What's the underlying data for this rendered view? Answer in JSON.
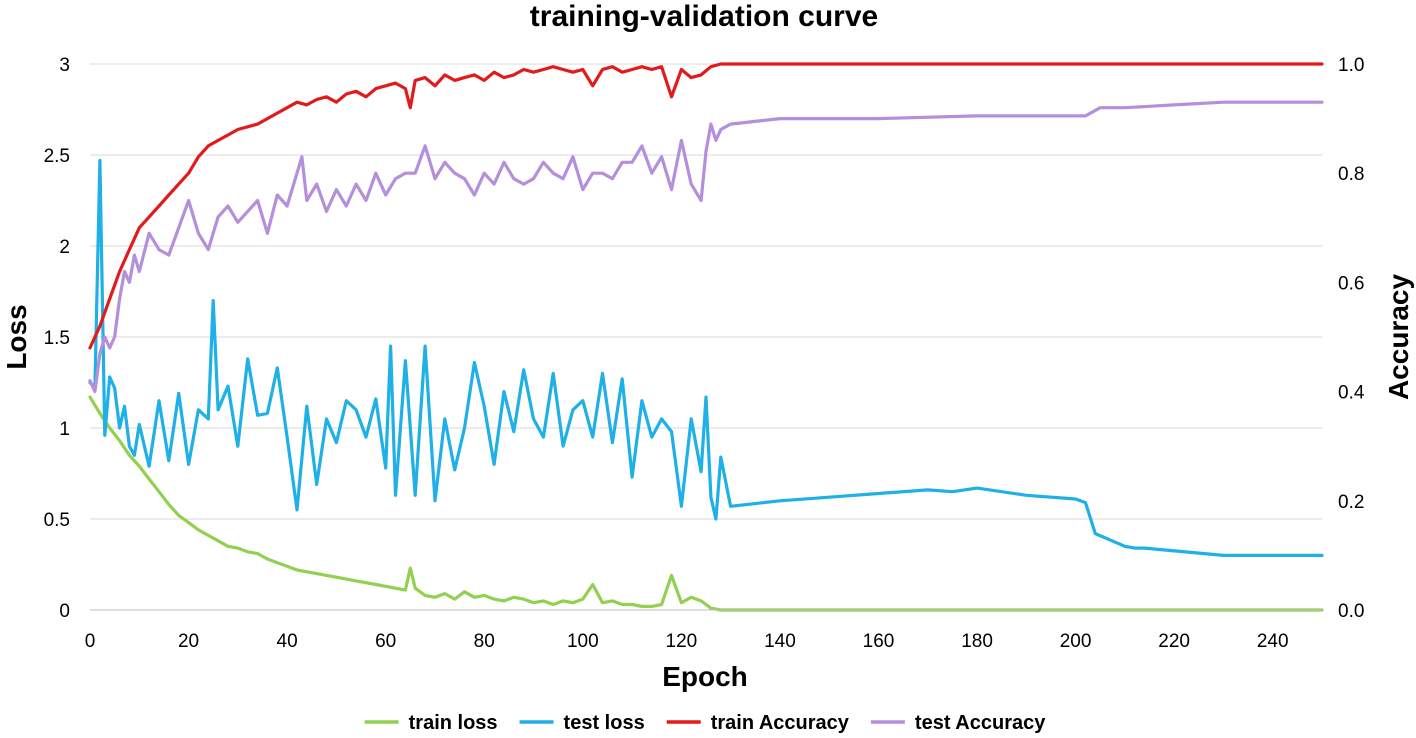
{
  "chart_data": {
    "type": "line",
    "title": "training-validation curve",
    "xlabel": "Epoch",
    "ylabel": "Loss",
    "y2label": "Accuracy",
    "xlim": [
      0,
      250
    ],
    "ylim": [
      0,
      3
    ],
    "y2lim": [
      0,
      1
    ],
    "xticks": [
      0,
      20,
      40,
      60,
      80,
      100,
      120,
      140,
      160,
      180,
      200,
      220,
      240
    ],
    "yticks": [
      "0",
      "0.5",
      "1",
      "1.5",
      "2",
      "2.5",
      "3"
    ],
    "y2ticks": [
      "0.0",
      "0.2",
      "0.4",
      "0.6",
      "0.8",
      "1.0"
    ],
    "grid": true,
    "legend_position": "bottom",
    "series": [
      {
        "name": "train loss",
        "axis": "left",
        "color": "#92d050",
        "x": [
          0,
          2,
          4,
          6,
          8,
          10,
          12,
          14,
          16,
          18,
          20,
          22,
          24,
          26,
          28,
          30,
          32,
          34,
          36,
          38,
          40,
          42,
          44,
          46,
          48,
          50,
          52,
          54,
          56,
          58,
          60,
          62,
          64,
          65,
          66,
          68,
          70,
          72,
          74,
          76,
          78,
          80,
          82,
          84,
          86,
          88,
          90,
          92,
          94,
          96,
          98,
          100,
          102,
          104,
          106,
          108,
          110,
          112,
          114,
          116,
          118,
          120,
          122,
          124,
          126,
          128,
          130,
          140,
          160,
          180,
          200,
          220,
          240,
          250
        ],
        "values": [
          1.17,
          1.08,
          1.0,
          0.93,
          0.85,
          0.79,
          0.72,
          0.65,
          0.58,
          0.52,
          0.48,
          0.44,
          0.41,
          0.38,
          0.35,
          0.34,
          0.32,
          0.31,
          0.28,
          0.26,
          0.24,
          0.22,
          0.21,
          0.2,
          0.19,
          0.18,
          0.17,
          0.16,
          0.15,
          0.14,
          0.13,
          0.12,
          0.11,
          0.23,
          0.12,
          0.08,
          0.07,
          0.09,
          0.06,
          0.1,
          0.07,
          0.08,
          0.06,
          0.05,
          0.07,
          0.06,
          0.04,
          0.05,
          0.03,
          0.05,
          0.04,
          0.06,
          0.14,
          0.04,
          0.05,
          0.03,
          0.03,
          0.02,
          0.02,
          0.03,
          0.19,
          0.04,
          0.07,
          0.05,
          0.01,
          0.0,
          0.0,
          0.0,
          0.0,
          0.0,
          0.0,
          0.0,
          0.0,
          0.0
        ]
      },
      {
        "name": "test loss",
        "axis": "left",
        "color": "#1eb0e6",
        "x": [
          0,
          1,
          2,
          3,
          4,
          5,
          6,
          7,
          8,
          9,
          10,
          12,
          14,
          16,
          18,
          20,
          22,
          24,
          25,
          26,
          28,
          30,
          32,
          34,
          36,
          38,
          40,
          42,
          44,
          46,
          48,
          50,
          52,
          54,
          56,
          58,
          60,
          61,
          62,
          64,
          66,
          68,
          70,
          72,
          74,
          76,
          78,
          80,
          82,
          84,
          86,
          88,
          90,
          92,
          94,
          96,
          98,
          100,
          102,
          104,
          106,
          108,
          110,
          112,
          114,
          116,
          118,
          120,
          122,
          124,
          125,
          126,
          127,
          128,
          130,
          140,
          150,
          160,
          170,
          175,
          180,
          190,
          200,
          202,
          204,
          210,
          212,
          214,
          230,
          250
        ],
        "values": [
          1.25,
          1.22,
          2.47,
          0.96,
          1.28,
          1.22,
          1.0,
          1.12,
          0.9,
          0.85,
          1.02,
          0.79,
          1.15,
          0.82,
          1.19,
          0.8,
          1.1,
          1.05,
          1.7,
          1.1,
          1.23,
          0.9,
          1.38,
          1.07,
          1.08,
          1.33,
          0.95,
          0.55,
          1.12,
          0.69,
          1.05,
          0.92,
          1.15,
          1.1,
          0.95,
          1.16,
          0.78,
          1.45,
          0.63,
          1.37,
          0.63,
          1.45,
          0.6,
          1.05,
          0.77,
          1.0,
          1.36,
          1.12,
          0.8,
          1.2,
          0.98,
          1.32,
          1.05,
          0.95,
          1.3,
          0.9,
          1.1,
          1.15,
          0.95,
          1.3,
          0.92,
          1.27,
          0.73,
          1.15,
          0.95,
          1.05,
          0.98,
          0.57,
          1.05,
          0.76,
          1.17,
          0.62,
          0.5,
          0.84,
          0.57,
          0.6,
          0.62,
          0.64,
          0.66,
          0.65,
          0.67,
          0.63,
          0.61,
          0.59,
          0.42,
          0.35,
          0.34,
          0.34,
          0.3,
          0.3
        ]
      },
      {
        "name": "train Accuracy",
        "axis": "right",
        "color": "#e31a1c",
        "x": [
          0,
          2,
          4,
          6,
          8,
          10,
          12,
          14,
          16,
          18,
          20,
          22,
          24,
          26,
          28,
          30,
          32,
          34,
          36,
          38,
          40,
          42,
          44,
          46,
          48,
          50,
          52,
          54,
          56,
          58,
          60,
          62,
          64,
          65,
          66,
          68,
          70,
          72,
          74,
          76,
          78,
          80,
          82,
          84,
          86,
          88,
          90,
          92,
          94,
          96,
          98,
          100,
          102,
          104,
          106,
          108,
          110,
          112,
          114,
          116,
          118,
          120,
          122,
          124,
          126,
          128,
          130,
          150,
          200,
          250
        ],
        "values": [
          0.48,
          0.52,
          0.57,
          0.62,
          0.66,
          0.7,
          0.72,
          0.74,
          0.76,
          0.78,
          0.8,
          0.83,
          0.85,
          0.86,
          0.87,
          0.88,
          0.885,
          0.89,
          0.9,
          0.91,
          0.92,
          0.93,
          0.925,
          0.935,
          0.94,
          0.93,
          0.945,
          0.95,
          0.94,
          0.955,
          0.96,
          0.965,
          0.955,
          0.92,
          0.97,
          0.975,
          0.96,
          0.98,
          0.97,
          0.975,
          0.98,
          0.97,
          0.985,
          0.975,
          0.98,
          0.99,
          0.985,
          0.99,
          0.995,
          0.99,
          0.985,
          0.99,
          0.96,
          0.99,
          0.995,
          0.985,
          0.99,
          0.995,
          0.99,
          0.995,
          0.94,
          0.99,
          0.975,
          0.98,
          0.995,
          1.0,
          1.0,
          1.0,
          1.0,
          1.0
        ]
      },
      {
        "name": "test Accuracy",
        "axis": "right",
        "color": "#b48fdb",
        "x": [
          0,
          1,
          2,
          3,
          4,
          5,
          6,
          7,
          8,
          9,
          10,
          12,
          14,
          16,
          18,
          20,
          22,
          24,
          26,
          28,
          30,
          32,
          34,
          36,
          38,
          40,
          42,
          43,
          44,
          46,
          48,
          50,
          52,
          54,
          56,
          58,
          60,
          62,
          64,
          66,
          68,
          70,
          72,
          74,
          76,
          78,
          80,
          82,
          84,
          86,
          88,
          90,
          92,
          94,
          96,
          98,
          100,
          102,
          104,
          106,
          108,
          110,
          112,
          114,
          116,
          118,
          120,
          122,
          124,
          125,
          126,
          127,
          128,
          130,
          140,
          160,
          180,
          200,
          202,
          205,
          210,
          220,
          230,
          240,
          250
        ],
        "values": [
          0.42,
          0.4,
          0.47,
          0.5,
          0.48,
          0.5,
          0.57,
          0.62,
          0.6,
          0.65,
          0.62,
          0.69,
          0.66,
          0.65,
          0.7,
          0.75,
          0.69,
          0.66,
          0.72,
          0.74,
          0.71,
          0.73,
          0.75,
          0.69,
          0.76,
          0.74,
          0.8,
          0.83,
          0.75,
          0.78,
          0.73,
          0.77,
          0.74,
          0.78,
          0.75,
          0.8,
          0.76,
          0.79,
          0.8,
          0.8,
          0.85,
          0.79,
          0.82,
          0.8,
          0.79,
          0.76,
          0.8,
          0.78,
          0.82,
          0.79,
          0.78,
          0.79,
          0.82,
          0.8,
          0.79,
          0.83,
          0.77,
          0.8,
          0.8,
          0.79,
          0.82,
          0.82,
          0.85,
          0.8,
          0.83,
          0.77,
          0.86,
          0.78,
          0.75,
          0.84,
          0.89,
          0.86,
          0.88,
          0.89,
          0.9,
          0.9,
          0.905,
          0.905,
          0.905,
          0.92,
          0.92,
          0.925,
          0.93,
          0.93,
          0.93
        ]
      }
    ]
  }
}
